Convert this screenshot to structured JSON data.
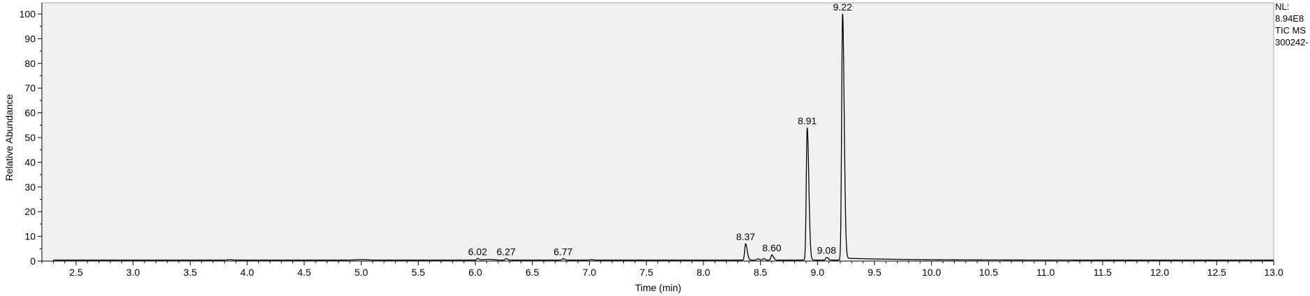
{
  "chart_data": {
    "type": "line",
    "title": "",
    "xlabel": "Time (min)",
    "ylabel": "Relative Abundance",
    "xlim": [
      2.2,
      13.0
    ],
    "ylim": [
      0,
      100
    ],
    "x_ticks": [
      2.5,
      3.0,
      3.5,
      4.0,
      4.5,
      5.0,
      5.5,
      6.0,
      6.5,
      7.0,
      7.5,
      8.0,
      8.5,
      9.0,
      9.5,
      10.0,
      10.5,
      11.0,
      11.5,
      12.0,
      12.5,
      13.0
    ],
    "x_tick_labels": [
      "2.5",
      "3.0",
      "3.5",
      "4.0",
      "4.5",
      "5.0",
      "5.5",
      "6.0",
      "6.5",
      "7.0",
      "7.5",
      "8.0",
      "8.5",
      "9.0",
      "9.5",
      "10.0",
      "10.5",
      "11.0",
      "11.5",
      "12.0",
      "12.5",
      "13.0"
    ],
    "y_ticks": [
      0,
      10,
      20,
      30,
      40,
      50,
      60,
      70,
      80,
      90,
      100
    ],
    "y_tick_labels": [
      "0",
      "10",
      "20",
      "30",
      "40",
      "50",
      "60",
      "70",
      "80",
      "90",
      "100"
    ],
    "baseline": 0.4,
    "peaks": [
      {
        "rt": 6.02,
        "height": 1.0,
        "label": "6.02"
      },
      {
        "rt": 6.27,
        "height": 1.0,
        "label": "6.27"
      },
      {
        "rt": 6.77,
        "height": 1.0,
        "label": "6.77"
      },
      {
        "rt": 8.37,
        "height": 7.0,
        "label": "8.37"
      },
      {
        "rt": 8.6,
        "height": 2.5,
        "label": "8.60"
      },
      {
        "rt": 8.91,
        "height": 54.0,
        "label": "8.91"
      },
      {
        "rt": 9.08,
        "height": 1.5,
        "label": "9.08"
      },
      {
        "rt": 9.22,
        "height": 100.0,
        "label": "9.22"
      }
    ],
    "grid": false,
    "legend": "none"
  },
  "info": {
    "lines": [
      "NL:",
      "8.94E8",
      "TIC  MS",
      "300242-"
    ]
  }
}
